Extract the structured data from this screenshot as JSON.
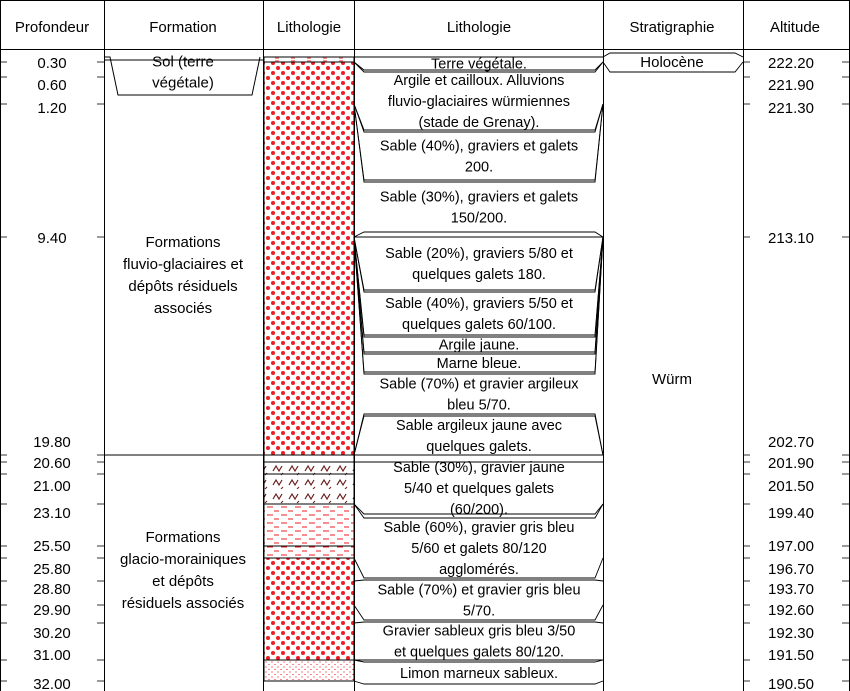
{
  "headers": {
    "depth": "Profondeur",
    "formation": "Formation",
    "lithology_column": "Lithologie",
    "lithology_description": "Lithologie",
    "stratigraphy": "Stratigraphie",
    "altitude": "Altitude"
  },
  "depth_marks": [
    {
      "depth_m": 0.0,
      "depth": "",
      "altitude": ""
    },
    {
      "depth_m": 0.3,
      "depth": "0.30",
      "altitude": "222.20"
    },
    {
      "depth_m": 0.6,
      "depth": "0.60",
      "altitude": "221.90"
    },
    {
      "depth_m": 1.2,
      "depth": "1.20",
      "altitude": "221.30"
    },
    {
      "depth_m": 9.4,
      "depth": "9.40",
      "altitude": "213.10"
    },
    {
      "depth_m": 19.8,
      "depth": "19.80",
      "altitude": "202.70"
    },
    {
      "depth_m": 20.6,
      "depth": "20.60",
      "altitude": "201.90"
    },
    {
      "depth_m": 21.0,
      "depth": "21.00",
      "altitude": "201.50"
    },
    {
      "depth_m": 23.1,
      "depth": "23.10",
      "altitude": "199.40"
    },
    {
      "depth_m": 25.5,
      "depth": "25.50",
      "altitude": "197.00"
    },
    {
      "depth_m": 25.8,
      "depth": "25.80",
      "altitude": "196.70"
    },
    {
      "depth_m": 28.8,
      "depth": "28.80",
      "altitude": "193.70"
    },
    {
      "depth_m": 29.9,
      "depth": "29.90",
      "altitude": "192.60"
    },
    {
      "depth_m": 30.2,
      "depth": "30.20",
      "altitude": "192.30"
    },
    {
      "depth_m": 31.0,
      "depth": "31.00",
      "altitude": "191.50"
    },
    {
      "depth_m": 32.0,
      "depth": "32.00",
      "altitude": "190.50"
    }
  ],
  "formations": [
    {
      "lines": [
        "Sol (terre",
        "végétale)"
      ],
      "top_m": 0.0,
      "bottom_m": 0.6
    },
    {
      "lines": [
        "Formations",
        "fluvio-glaciaires et",
        "dépôts résiduels",
        "associés"
      ],
      "top_m": 0.6,
      "bottom_m": 19.8
    },
    {
      "lines": [
        "Formations",
        "glacio-morainiques",
        "et dépôts",
        "résiduels associés"
      ],
      "top_m": 19.8,
      "bottom_m": 32.0
    }
  ],
  "stratigraphy": [
    {
      "label": "Holocène",
      "top_m": 0.0,
      "bottom_m": 0.3
    },
    {
      "label": "Würm",
      "top_m": 0.3,
      "bottom_m": 32.0
    }
  ],
  "descriptions": [
    {
      "lines": [
        "Terre végétale."
      ],
      "top_m": 0.0,
      "bottom_m": 0.3
    },
    {
      "lines": [
        "Argile et cailloux. Alluvions",
        "fluvio-glaciaires würmiennes",
        "(stade de Grenay)."
      ],
      "top_m": 0.3,
      "bottom_m": 1.2
    },
    {
      "lines": [
        "Sable (40%), graviers et galets",
        "200."
      ],
      "top_m": 1.2,
      "bottom_m": 1.2
    },
    {
      "lines": [
        "Sable (30%), graviers et galets",
        "150/200."
      ],
      "top_m": 1.2,
      "bottom_m": 9.4
    },
    {
      "lines": [
        "Sable (20%), graviers 5/80 et",
        "quelques galets 180."
      ],
      "top_m": 9.4,
      "bottom_m": 9.4
    },
    {
      "lines": [
        "Sable (40%), graviers 5/50 et",
        "quelques galets 60/100."
      ],
      "top_m": 9.4,
      "bottom_m": 9.4
    },
    {
      "lines": [
        "Argile jaune."
      ],
      "top_m": 9.4,
      "bottom_m": 9.4
    },
    {
      "lines": [
        "Marne bleue."
      ],
      "top_m": 9.4,
      "bottom_m": 9.4
    },
    {
      "lines": [
        "Sable (70%) et gravier argileux",
        "bleu 5/70."
      ],
      "top_m": 9.4,
      "bottom_m": 19.8
    },
    {
      "lines": [
        "Sable argileux jaune avec",
        "quelques galets."
      ],
      "top_m": 19.8,
      "bottom_m": 19.8
    },
    {
      "lines": [
        "Sable (30%), gravier jaune",
        "5/40 et quelques galets",
        "(60/200)."
      ],
      "top_m": 20.6,
      "bottom_m": 23.1
    },
    {
      "lines": [
        "Sable (60%), gravier gris bleu",
        "5/60 et galets 80/120",
        "agglomérés."
      ],
      "top_m": 23.1,
      "bottom_m": 25.8
    },
    {
      "lines": [
        "Sable (70%) et gravier gris bleu",
        "5/70."
      ],
      "top_m": 28.8,
      "bottom_m": 29.9
    },
    {
      "lines": [
        "Gravier sableux gris bleu 3/50",
        "et quelques galets 80/120."
      ],
      "top_m": 30.2,
      "bottom_m": 31.0
    },
    {
      "lines": [
        "Limon marneux sableux."
      ],
      "top_m": 31.0,
      "bottom_m": 32.0
    }
  ],
  "lithology_layers": [
    {
      "pattern": "soil",
      "top_m": 0.0,
      "bottom_m": 0.3
    },
    {
      "pattern": "dots",
      "top_m": 0.3,
      "bottom_m": 19.8
    },
    {
      "pattern": "blank",
      "top_m": 19.8,
      "bottom_m": 20.6
    },
    {
      "pattern": "zigzag",
      "top_m": 20.6,
      "bottom_m": 21.0
    },
    {
      "pattern": "zigzag",
      "top_m": 21.0,
      "bottom_m": 23.1
    },
    {
      "pattern": "dashes",
      "top_m": 23.1,
      "bottom_m": 25.5
    },
    {
      "pattern": "dashes",
      "top_m": 25.5,
      "bottom_m": 25.8
    },
    {
      "pattern": "dots",
      "top_m": 25.8,
      "bottom_m": 31.0
    },
    {
      "pattern": "fine-dots",
      "top_m": 31.0,
      "bottom_m": 32.0
    }
  ],
  "colors": {
    "pattern": "#ee1c25",
    "zigzag": "#6b1a1a",
    "line": "#000000"
  }
}
